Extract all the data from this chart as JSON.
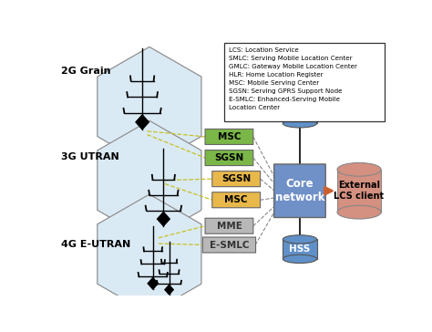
{
  "bg_color": "#ffffff",
  "legend_lines": [
    "LCS: Location Service",
    "SMLC: Serving Mobile Location Center",
    "GMLC: Gateway Mobile Location Center",
    "HLR: Home Location Register",
    "MSC: Mobile Serving Center",
    "SGSN: Serving GPRS Support Node",
    "E-SMLC: Enhanced-Serving Mobile",
    "Location Center"
  ],
  "network_labels": [
    "2G Grain",
    "3G UTRAN",
    "4G E-UTRAN"
  ],
  "color_2g": "#7ab648",
  "color_3g": "#e8b84b",
  "color_4g": "#b8b8b8",
  "color_core": "#7090c8",
  "color_external": "#d49080",
  "color_hexagon": "#daeaf5",
  "color_hlr_hss": "#6090c8",
  "hex_edge": "#909090"
}
